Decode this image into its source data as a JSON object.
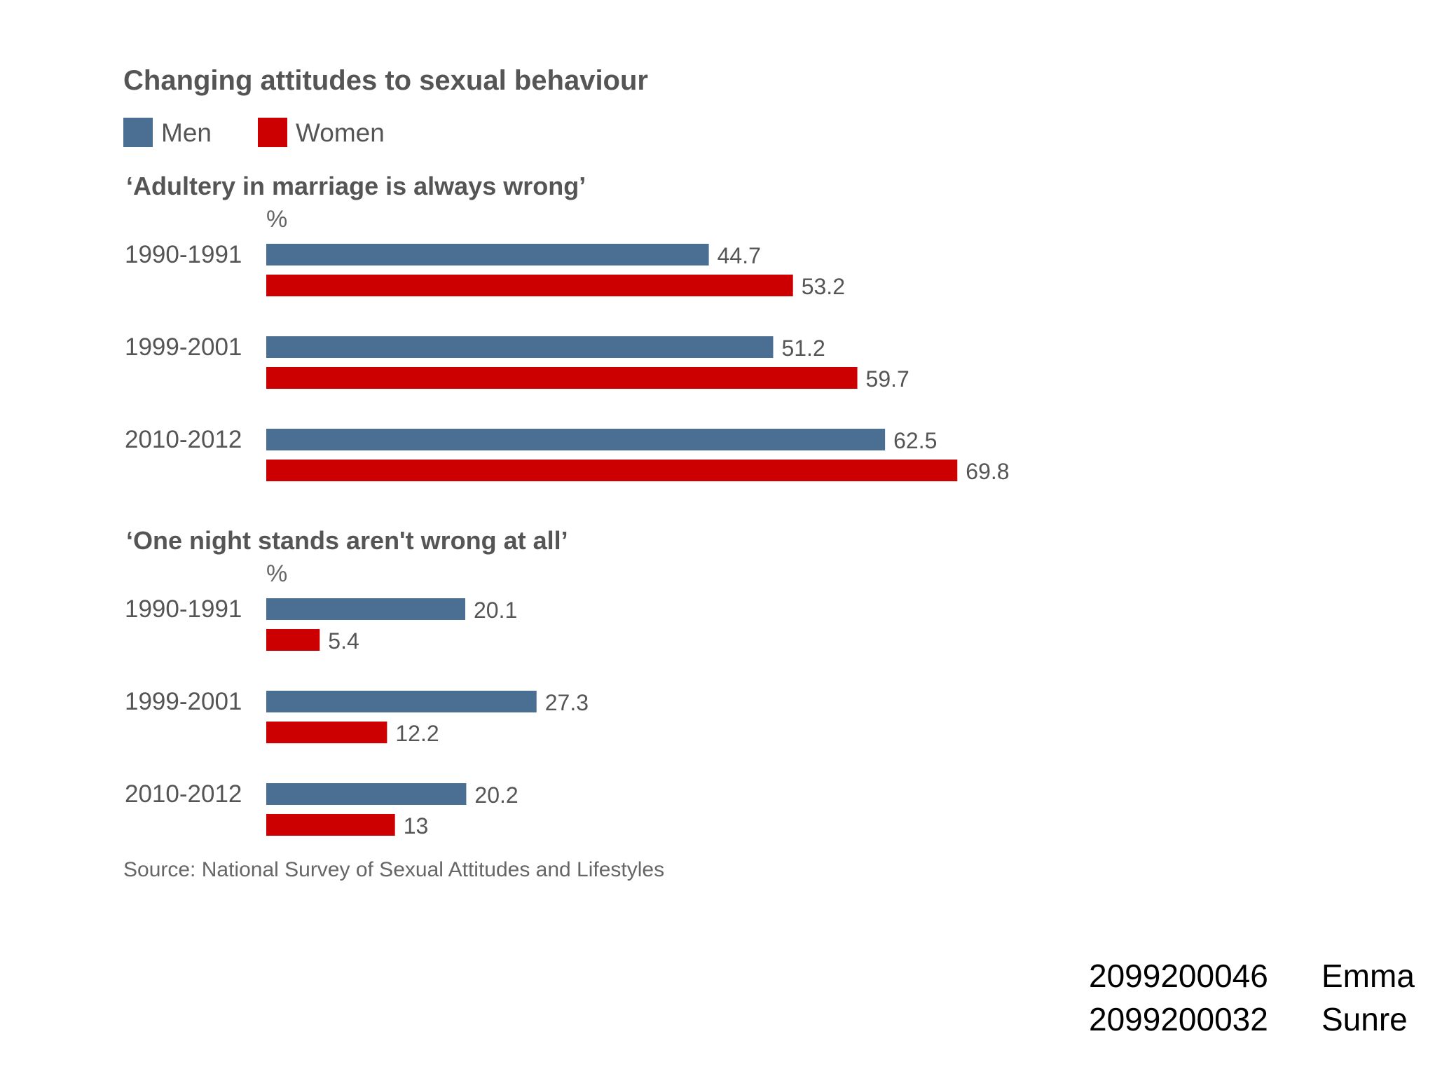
{
  "chart_data": {
    "type": "bar",
    "orientation": "horizontal",
    "title": "Changing attitudes to sexual behaviour",
    "legend": [
      "Men",
      "Women"
    ],
    "legend_placement": "top-left",
    "grid": false,
    "source": "Source: National Survey of Sexual Attitudes and Lifestyles",
    "colors": {
      "Men": "#4a6f93",
      "Women": "#cc0000"
    },
    "xlim": [
      0,
      100
    ],
    "panels": [
      {
        "subtitle": "‘Adultery in marriage is always wrong’",
        "unit": "%",
        "categories": [
          "1990-1991",
          "1999-2001",
          "2010-2012"
        ],
        "series": [
          {
            "name": "Men",
            "values": [
              44.7,
              51.2,
              62.5
            ]
          },
          {
            "name": "Women",
            "values": [
              53.2,
              59.7,
              69.8
            ]
          }
        ]
      },
      {
        "subtitle": "‘One night stands aren't wrong at all’",
        "unit": "%",
        "categories": [
          "1990-1991",
          "1999-2001",
          "2010-2012"
        ],
        "series": [
          {
            "name": "Men",
            "values": [
              20.1,
              27.3,
              20.2
            ]
          },
          {
            "name": "Women",
            "values": [
              5.4,
              12.2,
              13
            ]
          }
        ]
      }
    ]
  },
  "footer": [
    {
      "id": "2099200046",
      "name": "Emma"
    },
    {
      "id": "2099200032",
      "name": "Sunre"
    }
  ]
}
